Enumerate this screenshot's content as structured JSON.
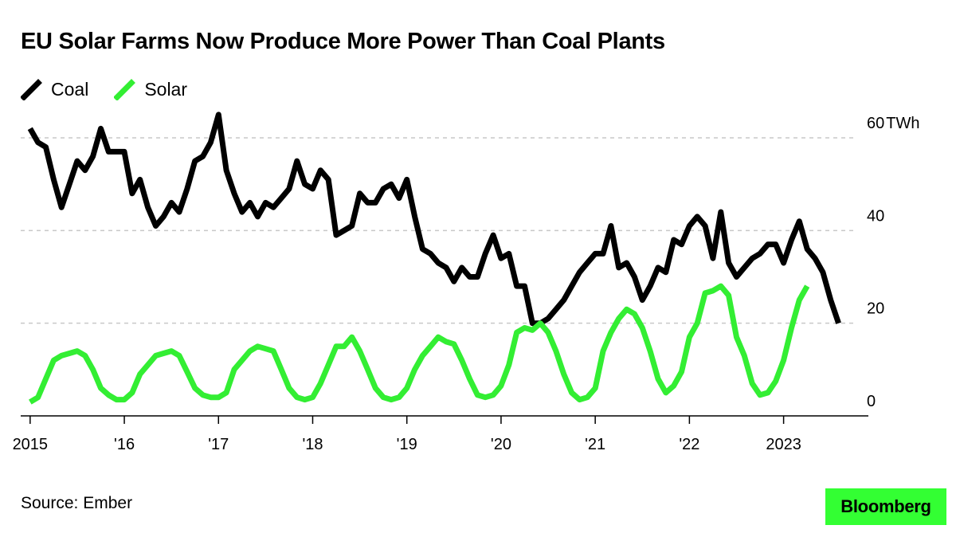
{
  "title": "EU Solar Farms Now Produce More Power Than Coal Plants",
  "source": "Source: Ember",
  "brand": {
    "label": "Bloomberg",
    "background": "#33ff33"
  },
  "legend": [
    {
      "label": "Coal",
      "color": "#000000"
    },
    {
      "label": "Solar",
      "color": "#33ee33"
    }
  ],
  "chart_data": {
    "type": "line",
    "title": "EU Solar Farms Now Produce More Power Than Coal Plants",
    "y_unit": "TWh",
    "ylim": [
      0,
      60
    ],
    "y_ticks": [
      {
        "value": 0,
        "label": "0"
      },
      {
        "value": 20,
        "label": "20"
      },
      {
        "value": 40,
        "label": "40"
      },
      {
        "value": 60,
        "label": "60",
        "unit": "TWh"
      }
    ],
    "x_ticks": [
      {
        "value": 2015,
        "label": "2015"
      },
      {
        "value": 2016,
        "label": "'16"
      },
      {
        "value": 2017,
        "label": "'17"
      },
      {
        "value": 2018,
        "label": "'18"
      },
      {
        "value": 2019,
        "label": "'19"
      },
      {
        "value": 2020,
        "label": "'20"
      },
      {
        "value": 2021,
        "label": "'21"
      },
      {
        "value": 2022,
        "label": "'22"
      },
      {
        "value": 2023,
        "label": "2023"
      }
    ],
    "xlim": [
      2014.9,
      2023.9
    ],
    "grid": "horizontal dashed",
    "legend_position": "top-left",
    "x_start": "2015-01",
    "x_step": "month",
    "series": [
      {
        "name": "Coal",
        "color": "#000000",
        "values": [
          62,
          59,
          58,
          51,
          45,
          50,
          55,
          53,
          56,
          62,
          57,
          57,
          57,
          48,
          51,
          45,
          41,
          43,
          46,
          44,
          49,
          55,
          56,
          59,
          65,
          53,
          48,
          44,
          46,
          43,
          46,
          45,
          47,
          49,
          55,
          50,
          49,
          53,
          51,
          39,
          40,
          41,
          48,
          46,
          46,
          49,
          50,
          47,
          51,
          43,
          36,
          35,
          33,
          32,
          29,
          32,
          30,
          30,
          35,
          39,
          34,
          35,
          28,
          28,
          20,
          20,
          21,
          23,
          25,
          28,
          31,
          33,
          35,
          35,
          41,
          32,
          33,
          30,
          25,
          28,
          32,
          31,
          38,
          37,
          41,
          43,
          41,
          34,
          44,
          33,
          30,
          32,
          34,
          35,
          37,
          37,
          33,
          38,
          42,
          36,
          34,
          31,
          25,
          20
        ],
        "peak_label_note": ""
      },
      {
        "name": "Solar",
        "color": "#33ee33",
        "values": [
          3,
          4,
          8,
          12,
          13,
          13.5,
          14,
          13,
          10,
          6,
          4.5,
          3.5,
          3.5,
          5,
          9,
          11,
          13,
          13.5,
          14,
          13,
          9.5,
          6,
          4.5,
          4,
          4,
          5,
          10,
          12,
          14,
          15,
          14.5,
          14,
          10,
          6,
          4,
          3.5,
          4,
          7,
          11,
          15,
          15,
          17,
          14,
          10,
          6,
          4,
          3.5,
          4,
          6,
          10,
          13,
          15,
          17,
          16,
          15.5,
          12,
          8,
          4.5,
          4,
          4.5,
          6.5,
          11,
          18,
          19,
          18.5,
          20,
          18,
          14,
          9,
          5,
          3.5,
          4,
          6,
          14,
          18,
          21,
          23,
          22,
          19,
          14,
          8,
          5,
          6.5,
          9.5,
          17,
          20,
          26.5,
          27,
          28,
          26,
          17,
          13,
          7,
          4.5,
          5,
          7.5,
          12,
          19,
          25,
          28
        ]
      }
    ]
  }
}
